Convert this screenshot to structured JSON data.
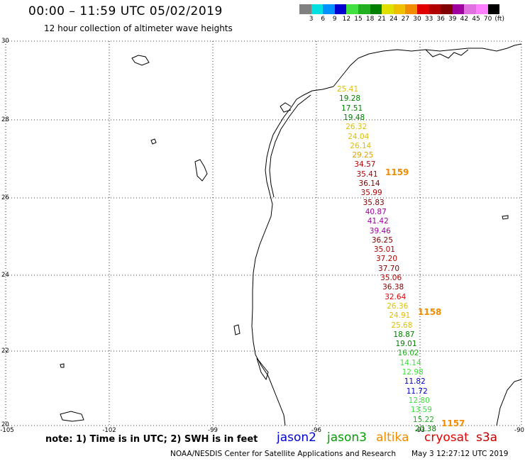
{
  "header": {
    "title": "00:00 – 11:59 UTC 05/02/2019",
    "subtitle": "12 hour collection of altimeter wave heights"
  },
  "colorbar": {
    "swatches": [
      "#808080",
      "#00e0e0",
      "#0090ff",
      "#0000d0",
      "#40e040",
      "#20b020",
      "#008000",
      "#e0e000",
      "#f0c000",
      "#f28c00",
      "#e00000",
      "#b00000",
      "#800000",
      "#a000a0",
      "#e070e0",
      "#ff80ff",
      "#000000"
    ],
    "labels": [
      "3",
      "6",
      "9",
      "12",
      "15",
      "18",
      "21",
      "24",
      "27",
      "30",
      "33",
      "36",
      "39",
      "42",
      "45",
      "70",
      "(ft)"
    ]
  },
  "axes": {
    "lat_labels": [
      "30",
      "28",
      "26",
      "24",
      "22",
      "20"
    ],
    "lon_labels": [
      "-105",
      "-102",
      "-99",
      "-96",
      "-93",
      "-90"
    ]
  },
  "wave_heights": [
    {
      "text": "25.41",
      "color": "#e0c000"
    },
    {
      "text": "19.28",
      "color": "#008000"
    },
    {
      "text": "17.51",
      "color": "#008000"
    },
    {
      "text": "19.48",
      "color": "#008000"
    },
    {
      "text": "26.32",
      "color": "#e0c000"
    },
    {
      "text": "24.04",
      "color": "#e0c000"
    },
    {
      "text": "26.14",
      "color": "#e0c000"
    },
    {
      "text": "29.25",
      "color": "#e0a000"
    },
    {
      "text": "34.57",
      "color": "#b00000"
    },
    {
      "text": "35.41",
      "color": "#b00000"
    },
    {
      "text": "36.14",
      "color": "#800000"
    },
    {
      "text": "35.99",
      "color": "#b00000"
    },
    {
      "text": "35.83",
      "color": "#800000"
    },
    {
      "text": "40.87",
      "color": "#a000a0"
    },
    {
      "text": "41.42",
      "color": "#a000a0"
    },
    {
      "text": "39.46",
      "color": "#a000a0"
    },
    {
      "text": "36.25",
      "color": "#800000"
    },
    {
      "text": "35.01",
      "color": "#b00000"
    },
    {
      "text": "37.20",
      "color": "#b00000"
    },
    {
      "text": "37.70",
      "color": "#800000"
    },
    {
      "text": "35.06",
      "color": "#b00000"
    },
    {
      "text": "36.38",
      "color": "#800000"
    },
    {
      "text": "32.64",
      "color": "#e00000"
    },
    {
      "text": "26.36",
      "color": "#e0c000"
    },
    {
      "text": "24.91",
      "color": "#e0c000"
    },
    {
      "text": "25.68",
      "color": "#e0c000"
    },
    {
      "text": "18.87",
      "color": "#008000"
    },
    {
      "text": "19.01",
      "color": "#008000"
    },
    {
      "text": "16.02",
      "color": "#20b020"
    },
    {
      "text": "14.14",
      "color": "#40e040"
    },
    {
      "text": "12.98",
      "color": "#40e040"
    },
    {
      "text": "11.82",
      "color": "#0000d0"
    },
    {
      "text": "11.72",
      "color": "#0000d0"
    },
    {
      "text": "12.80",
      "color": "#40e040"
    },
    {
      "text": "13.59",
      "color": "#40e040"
    },
    {
      "text": "15.22",
      "color": "#20b020"
    },
    {
      "text": "20.38",
      "color": "#008000"
    }
  ],
  "pass_times": [
    "1159",
    "1158",
    "1157"
  ],
  "note": "note: 1) Time is in UTC; 2) SWH is in feet",
  "legend": [
    {
      "text": "jason2",
      "color": "#0000d0"
    },
    {
      "text": "jason3",
      "color": "#00a000"
    },
    {
      "text": "altika",
      "color": "#f28c00"
    },
    {
      "text": "cryosat",
      "color": "#e00000"
    },
    {
      "text": "s3a",
      "color": "#c00000"
    }
  ],
  "footer": {
    "credit": "NOAA/NESDIS Center for Satellite Applications and Research",
    "timestamp": "May  3 12:27:12 UTC 2019"
  }
}
